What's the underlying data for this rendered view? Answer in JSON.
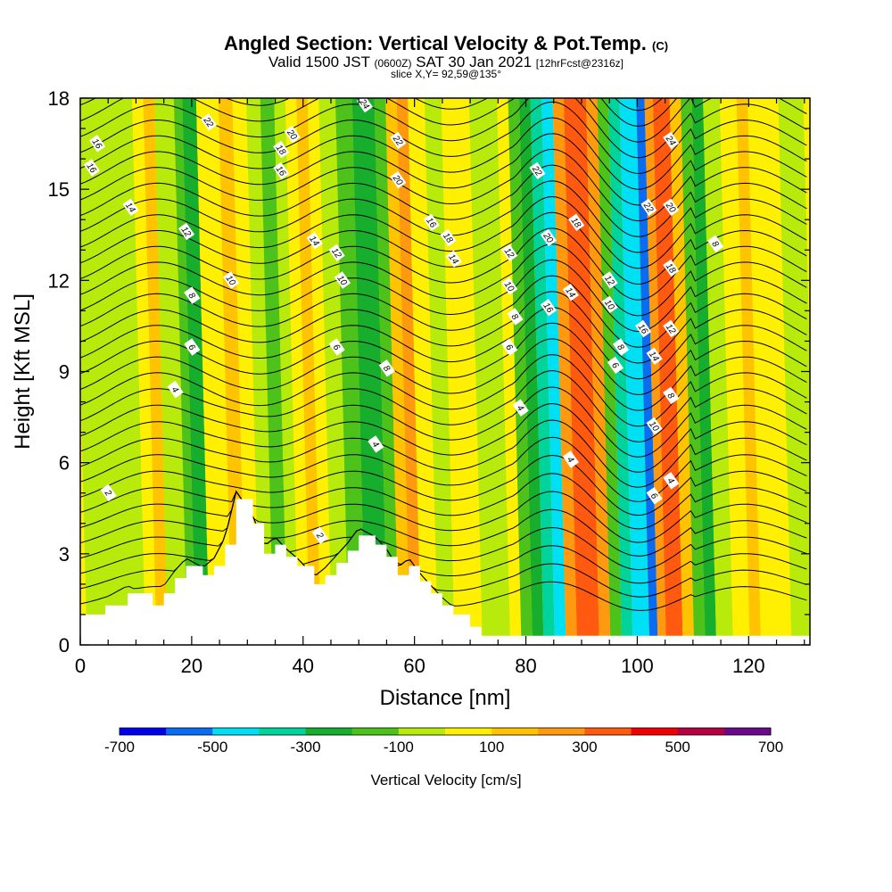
{
  "title_main": "Angled Section: Vertical Velocity & Pot.Temp.",
  "title_suffix": "(C)",
  "subtitle_a": "Valid 1500 JST",
  "subtitle_b": "(0600Z)",
  "subtitle_c": "SAT 30 Jan 2021",
  "subtitle_d": "[12hrFcst@2316z]",
  "slice_label": "slice X,Y= 92,59@135°",
  "chart_data": {
    "type": "heatmap",
    "xlabel": "Distance [nm]",
    "ylabel": "Height [Kft MSL]",
    "xlim": [
      0,
      131
    ],
    "ylim": [
      0,
      18
    ],
    "x_ticks": [
      0,
      20,
      40,
      60,
      80,
      100,
      120
    ],
    "y_ticks": [
      0,
      3,
      6,
      9,
      12,
      15,
      18
    ],
    "colorbar": {
      "label": "Vertical Velocity [cm/s]",
      "tick_labels": [
        "-700",
        "-500",
        "-300",
        "-100",
        "100",
        "300",
        "500",
        "700"
      ],
      "colors": [
        "#0000ee",
        "#0a6cf0",
        "#00e0f5",
        "#00d49c",
        "#17ae2d",
        "#4dc21a",
        "#b8ea0c",
        "#ffef00",
        "#ffc300",
        "#ff9a10",
        "#ff5a10",
        "#f00000",
        "#b40040",
        "#6a0a8a"
      ]
    },
    "bands": [
      {
        "x0": 0,
        "x1": 10.5,
        "color": "#b8ea0c",
        "top": 18
      },
      {
        "x0": 10.5,
        "x1": 12.5,
        "color": "#ffef00",
        "top": 18
      },
      {
        "x0": 12.5,
        "x1": 14.5,
        "color": "#ffc300",
        "top": 18
      },
      {
        "x0": 14.5,
        "x1": 18,
        "color": "#b8ea0c",
        "top": 18
      },
      {
        "x0": 18,
        "x1": 19.5,
        "color": "#4dc21a",
        "top": 18
      },
      {
        "x0": 19.5,
        "x1": 22,
        "color": "#17ae2d",
        "top": 18
      },
      {
        "x0": 22,
        "x1": 26,
        "color": "#ffef00",
        "top": 18
      },
      {
        "x0": 26,
        "x1": 28.5,
        "color": "#ffc300",
        "top": 18
      },
      {
        "x0": 28.5,
        "x1": 31,
        "color": "#ffef00",
        "top": 18
      },
      {
        "x0": 31,
        "x1": 33.5,
        "color": "#b8ea0c",
        "top": 18
      },
      {
        "x0": 33.5,
        "x1": 36,
        "color": "#4dc21a",
        "top": 18
      },
      {
        "x0": 36,
        "x1": 38,
        "color": "#b8ea0c",
        "top": 18
      },
      {
        "x0": 38,
        "x1": 40,
        "color": "#ffef00",
        "top": 18
      },
      {
        "x0": 40,
        "x1": 42,
        "color": "#ffc300",
        "top": 18
      },
      {
        "x0": 42,
        "x1": 44,
        "color": "#ffef00",
        "top": 18
      },
      {
        "x0": 44,
        "x1": 47,
        "color": "#b8ea0c",
        "top": 18
      },
      {
        "x0": 47,
        "x1": 50,
        "color": "#4dc21a",
        "top": 18
      },
      {
        "x0": 50,
        "x1": 54,
        "color": "#17ae2d",
        "top": 18
      },
      {
        "x0": 54,
        "x1": 56,
        "color": "#4dc21a",
        "top": 18
      },
      {
        "x0": 56,
        "x1": 58,
        "color": "#ffc300",
        "top": 18
      },
      {
        "x0": 58,
        "x1": 60,
        "color": "#ff9a10",
        "top": 18
      },
      {
        "x0": 60,
        "x1": 63,
        "color": "#ffef00",
        "top": 18
      },
      {
        "x0": 63,
        "x1": 66,
        "color": "#b8ea0c",
        "top": 18
      },
      {
        "x0": 66,
        "x1": 71,
        "color": "#ffef00",
        "top": 18
      },
      {
        "x0": 71,
        "x1": 76,
        "color": "#b8ea0c",
        "top": 18
      },
      {
        "x0": 76,
        "x1": 78,
        "color": "#ffef00",
        "top": 18
      },
      {
        "x0": 78,
        "x1": 80,
        "color": "#4dc21a",
        "top": 18
      },
      {
        "x0": 80,
        "x1": 82,
        "color": "#17ae2d",
        "top": 18
      },
      {
        "x0": 82,
        "x1": 84,
        "color": "#00d49c",
        "top": 18
      },
      {
        "x0": 84,
        "x1": 86,
        "color": "#00e0f5",
        "top": 18
      },
      {
        "x0": 86,
        "x1": 88,
        "color": "#ff9a10",
        "top": 18
      },
      {
        "x0": 88,
        "x1": 92,
        "color": "#ff5a10",
        "top": 18
      },
      {
        "x0": 92,
        "x1": 94,
        "color": "#ff9a10",
        "top": 18
      },
      {
        "x0": 94,
        "x1": 96,
        "color": "#4dc21a",
        "top": 18
      },
      {
        "x0": 96,
        "x1": 98,
        "color": "#00d49c",
        "top": 18
      },
      {
        "x0": 98,
        "x1": 101,
        "color": "#00e0f5",
        "top": 18
      },
      {
        "x0": 101,
        "x1": 102.5,
        "color": "#0a6cf0",
        "top": 18
      },
      {
        "x0": 102.5,
        "x1": 104,
        "color": "#ff9a10",
        "top": 18
      },
      {
        "x0": 104,
        "x1": 107,
        "color": "#ff5a10",
        "top": 18
      },
      {
        "x0": 107,
        "x1": 109,
        "color": "#ffc300",
        "top": 18
      },
      {
        "x0": 109,
        "x1": 111,
        "color": "#4dc21a",
        "top": 18
      },
      {
        "x0": 111,
        "x1": 113,
        "color": "#17ae2d",
        "top": 18
      },
      {
        "x0": 113,
        "x1": 116,
        "color": "#b8ea0c",
        "top": 18
      },
      {
        "x0": 116,
        "x1": 119,
        "color": "#ffef00",
        "top": 18
      },
      {
        "x0": 119,
        "x1": 121,
        "color": "#ffc300",
        "top": 18
      },
      {
        "x0": 121,
        "x1": 126.5,
        "color": "#ffef00",
        "top": 18
      },
      {
        "x0": 126.5,
        "x1": 131,
        "color": "#b8ea0c",
        "top": 18
      }
    ],
    "terrain_kft": [
      [
        0,
        1.0
      ],
      [
        4.5,
        1.3
      ],
      [
        8.5,
        1.7
      ],
      [
        13,
        1.3
      ],
      [
        15,
        1.7
      ],
      [
        17,
        2.2
      ],
      [
        19,
        2.6
      ],
      [
        22,
        2.3
      ],
      [
        24,
        2.6
      ],
      [
        26,
        3.3
      ],
      [
        28,
        4.8
      ],
      [
        31,
        4.0
      ],
      [
        33,
        3.0
      ],
      [
        35,
        3.3
      ],
      [
        37,
        2.9
      ],
      [
        39,
        2.6
      ],
      [
        42,
        2.0
      ],
      [
        44,
        2.3
      ],
      [
        46,
        2.7
      ],
      [
        48,
        3.1
      ],
      [
        50,
        3.6
      ],
      [
        53,
        3.3
      ],
      [
        55,
        2.9
      ],
      [
        57,
        2.3
      ],
      [
        59,
        2.6
      ],
      [
        61,
        2.1
      ],
      [
        63,
        1.7
      ],
      [
        65,
        1.3
      ],
      [
        67,
        1.0
      ],
      [
        70,
        0.6
      ],
      [
        72,
        0.3
      ],
      [
        131,
        0.3
      ]
    ],
    "isentropes_C": [
      "2",
      "4",
      "6",
      "8",
      "10",
      "12",
      "14",
      "16",
      "18",
      "20",
      "22",
      "24"
    ]
  }
}
